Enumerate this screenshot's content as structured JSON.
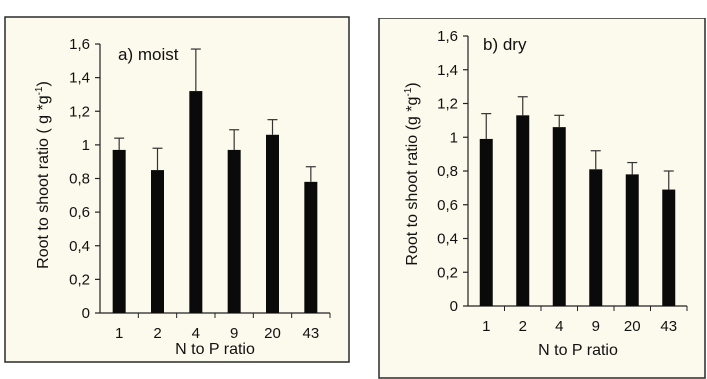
{
  "chart_data": [
    {
      "type": "bar",
      "panel_label": "a) moist",
      "title": "",
      "xlabel": "N to P ratio",
      "ylabel": "Root to shoot ratio ( g *g",
      "ylabel_sup": "-1",
      "ylabel_close": ")",
      "categories": [
        "1",
        "2",
        "4",
        "9",
        "20",
        "43"
      ],
      "values": [
        0.97,
        0.85,
        1.32,
        0.97,
        1.06,
        0.78
      ],
      "error_upper": [
        1.04,
        0.98,
        1.57,
        1.09,
        1.15,
        0.87
      ],
      "ylim": [
        0,
        1.6
      ],
      "yticks": [
        0,
        0.2,
        0.4,
        0.6,
        0.8,
        1.0,
        1.2,
        1.4,
        1.6
      ],
      "ytick_labels": [
        "0",
        "0,2",
        "0,4",
        "0,6",
        "0,8",
        "1",
        "1,2",
        "1,4",
        "1,6"
      ],
      "grid": false,
      "bar_color": "#0a0a0a",
      "panel_background": "#fcfaec",
      "frame_color": "#2a2a2a"
    },
    {
      "type": "bar",
      "panel_label": "b) dry",
      "title": "",
      "xlabel": "N to P ratio",
      "ylabel": "Root to shoot ratio  (g *g",
      "ylabel_sup": "-1",
      "ylabel_close": ")",
      "categories": [
        "1",
        "2",
        "4",
        "9",
        "20",
        "43"
      ],
      "values": [
        0.99,
        1.13,
        1.06,
        0.81,
        0.78,
        0.69
      ],
      "error_upper": [
        1.14,
        1.24,
        1.13,
        0.92,
        0.85,
        0.8
      ],
      "ylim": [
        0,
        1.6
      ],
      "yticks": [
        0,
        0.2,
        0.4,
        0.6,
        0.8,
        1.0,
        1.2,
        1.4,
        1.6
      ],
      "ytick_labels": [
        "0",
        "0,2",
        "0,4",
        "0,6",
        "0,8",
        "1",
        "1,2",
        "1,4",
        "1,6"
      ],
      "grid": false,
      "bar_color": "#0a0a0a",
      "panel_background": "#fcfaec",
      "frame_color": "#2a2a2a"
    }
  ]
}
